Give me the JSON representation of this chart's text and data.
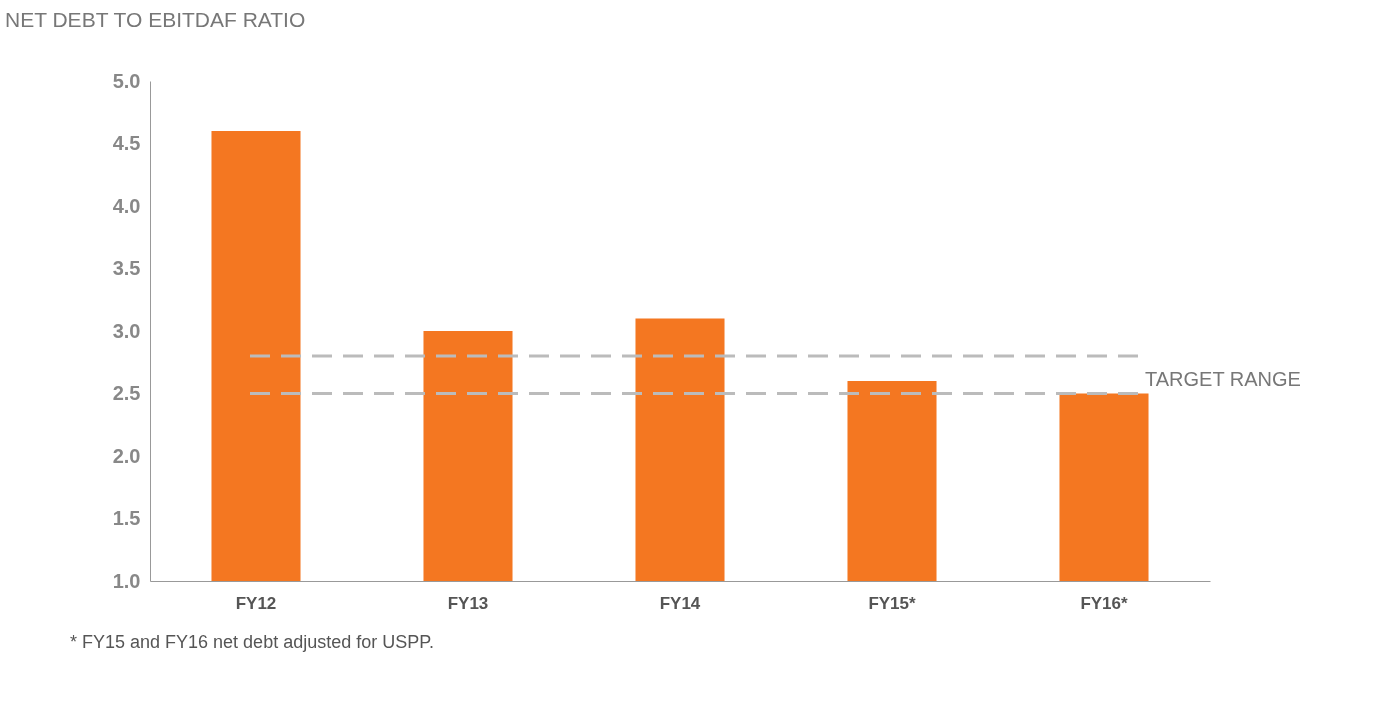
{
  "chart_data": {
    "type": "bar",
    "title": "NET DEBT TO EBITDAF RATIO",
    "categories": [
      "FY12",
      "FY13",
      "FY14",
      "FY15*",
      "FY16*"
    ],
    "values": [
      4.6,
      3.0,
      3.1,
      2.6,
      2.5
    ],
    "color": "#f47721",
    "ylim": [
      1.0,
      5.0
    ],
    "yticks": [
      {
        "value": 1,
        "label": "1.0"
      },
      {
        "value": 1.5,
        "label": "1.5"
      },
      {
        "value": 2,
        "label": "2.0"
      },
      {
        "value": 2.5,
        "label": "2.5"
      },
      {
        "value": 3,
        "label": "3.0"
      },
      {
        "value": 3.5,
        "label": "3.5"
      },
      {
        "value": 4,
        "label": "4.0"
      },
      {
        "value": 4.5,
        "label": "4.5"
      },
      {
        "value": 5,
        "label": "5.0"
      }
    ],
    "ref_lines": [
      {
        "axis": "y",
        "value": 2.8,
        "color": "#bbbbbb",
        "line_style": "dashed"
      },
      {
        "axis": "y",
        "value": 2.5,
        "label": "TARGET RANGE",
        "color": "#bbbbbb",
        "line_style": "dashed"
      }
    ],
    "annotations": [
      "* FY15 and FY16 net debt adjusted for USPP."
    ],
    "grid": false
  }
}
